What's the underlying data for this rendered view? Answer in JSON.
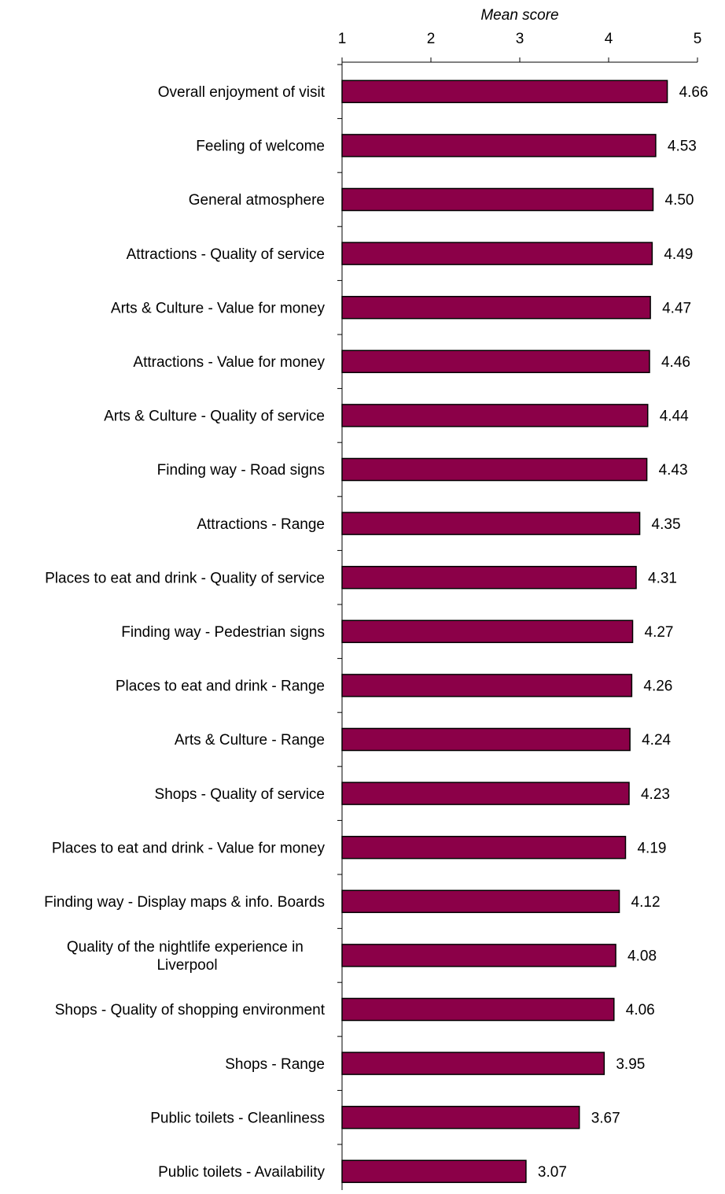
{
  "chart_data": {
    "type": "bar",
    "orientation": "horizontal",
    "xlabel": "Mean score",
    "xlim": [
      1,
      5
    ],
    "xticks": [
      "1",
      "2",
      "3",
      "4",
      "5"
    ],
    "x_axis_position": "top",
    "grid": false,
    "bar_color": "#8B0048",
    "bar_edge_color": "#000000",
    "categories": [
      [
        "Overall enjoyment of visit"
      ],
      [
        "Feeling of welcome"
      ],
      [
        "General atmosphere"
      ],
      [
        "Attractions - Quality of service"
      ],
      [
        "Arts & Culture - Value for money "
      ],
      [
        "Attractions - Value for money"
      ],
      [
        "Arts & Culture - Quality of service "
      ],
      [
        "Finding way - Road signs"
      ],
      [
        "Attractions - Range"
      ],
      [
        "Places to eat and drink - Quality of service"
      ],
      [
        "Finding way - Pedestrian signs"
      ],
      [
        "Places to eat and drink - Range"
      ],
      [
        "Arts & Culture - Range "
      ],
      [
        "Shops - Quality of service"
      ],
      [
        "Places to eat and drink - Value for money"
      ],
      [
        "Finding way - Display maps & info. Boards"
      ],
      [
        "Quality of the nightlife experience in ",
        "Liverpool"
      ],
      [
        "Shops - Quality of shopping environment"
      ],
      [
        "Shops - Range"
      ],
      [
        "Public toilets - Cleanliness"
      ],
      [
        "Public toilets - Availability"
      ]
    ],
    "values": [
      4.66,
      4.53,
      4.5,
      4.49,
      4.47,
      4.46,
      4.44,
      4.43,
      4.35,
      4.31,
      4.27,
      4.26,
      4.24,
      4.23,
      4.19,
      4.12,
      4.08,
      4.06,
      3.95,
      3.67,
      3.07
    ],
    "value_labels": [
      "4.66",
      "4.53",
      "4.50",
      "4.49",
      "4.47",
      "4.46",
      "4.44",
      "4.43",
      "4.35",
      "4.31",
      "4.27",
      "4.26",
      "4.24",
      "4.23",
      "4.19",
      "4.12",
      "4.08",
      "4.06",
      "3.95",
      "3.67",
      "3.07"
    ]
  }
}
